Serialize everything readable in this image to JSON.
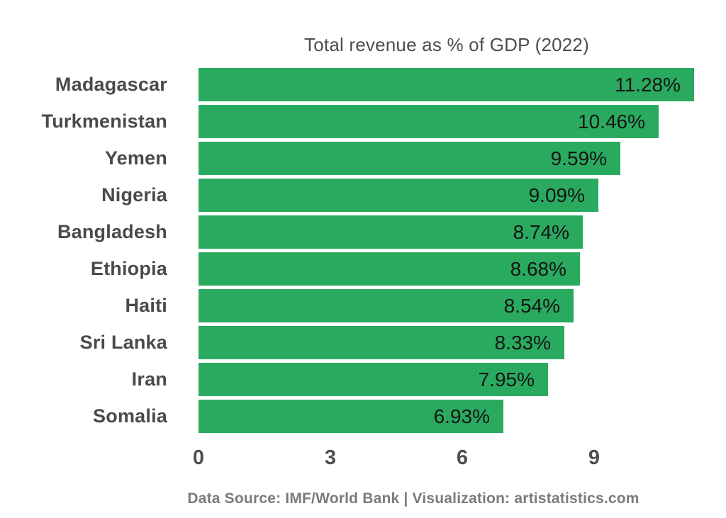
{
  "title": "Total revenue as % of GDP (2022)",
  "footer": "Data Source: IMF/World Bank | Visualization: artistatistics.com",
  "colors": {
    "bar": "#2aaa5f",
    "category_label": "#4a4a4a",
    "value_label": "#141414",
    "title": "#4d4d4d",
    "axis_label": "#4f4f4f",
    "footer": "#7b7b7b",
    "gridline": "#ffffff",
    "background": "#ffffff"
  },
  "chart_data": {
    "type": "bar",
    "orientation": "horizontal",
    "title": "Total revenue as % of GDP (2022)",
    "categories": [
      "Madagascar",
      "Turkmenistan",
      "Yemen",
      "Nigeria",
      "Bangladesh",
      "Ethiopia",
      "Haiti",
      "Sri Lanka",
      "Iran",
      "Somalia"
    ],
    "values": [
      11.28,
      10.46,
      9.59,
      9.09,
      8.74,
      8.68,
      8.54,
      8.33,
      7.95,
      6.93
    ],
    "value_labels": [
      "11.28%",
      "10.46%",
      "9.59%",
      "9.09%",
      "8.74%",
      "8.68%",
      "8.54%",
      "8.33%",
      "7.95%",
      "6.93%"
    ],
    "xlabel": "",
    "ylabel": "",
    "unit": "%",
    "xlim": [
      0,
      12
    ],
    "x_ticks": [
      0,
      3,
      6,
      9
    ],
    "x_tick_labels": [
      "0",
      "3",
      "6",
      "9"
    ],
    "gridlines_x": [
      1.5,
      4.5,
      7.5,
      10.5
    ],
    "grid": "vertical-white-behind-bars",
    "legend": "none",
    "source_note": "Data Source: IMF/World Bank | Visualization: artistatistics.com"
  }
}
